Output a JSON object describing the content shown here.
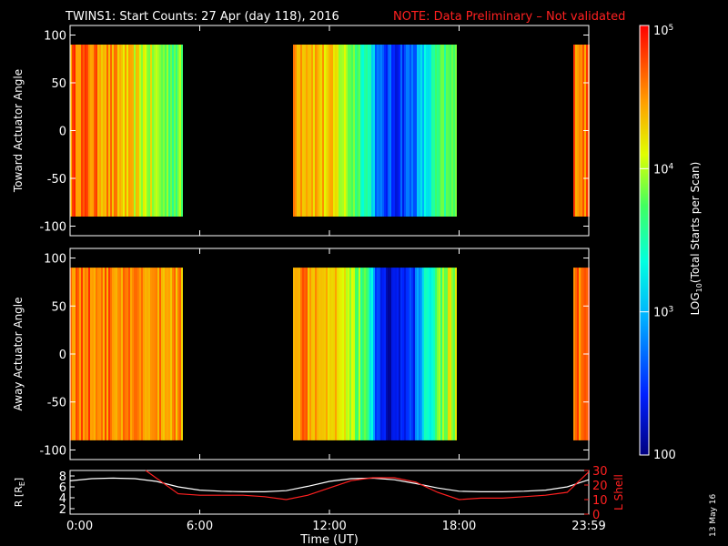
{
  "header": {
    "title": "TWINS1: Start Counts: 27 Apr (day 118), 2016",
    "note": "NOTE: Data Preliminary – Not validated"
  },
  "footer": {
    "date_stamp": "13 May 16"
  },
  "colors": {
    "background": "#000000",
    "axis": "#ffffff",
    "note": "#ff2020",
    "l_shell": "#ff2020",
    "radius": "#ffffff"
  },
  "colorbar": {
    "label": "LOG10(Total Starts per Scan)",
    "label_main": "LOG",
    "label_sub": "10",
    "label_rest": "(Total Starts per Scan)",
    "ticks": [
      {
        "value": 100,
        "text": "100"
      },
      {
        "value": 1000,
        "text": "10",
        "exp": "3"
      },
      {
        "value": 10000,
        "text": "10",
        "exp": "4"
      },
      {
        "value": 100000,
        "text": "10",
        "exp": "5"
      }
    ],
    "range": [
      100,
      100000
    ],
    "scale": "log",
    "colormap": "rainbow (blue→cyan→green→yellow→orange→red)"
  },
  "chart_data": [
    {
      "type": "heatmap",
      "panel": "toward",
      "ylabel": "Toward Actuator Angle",
      "ylim": [
        -110,
        110
      ],
      "y_ticks": [
        100,
        50,
        0,
        -50,
        -100
      ],
      "x_ticks": [
        "0:00",
        "6:00",
        "12:00",
        "18:00",
        "23:59"
      ],
      "xlim_hours": [
        0,
        24
      ],
      "angle_range": [
        -90,
        90
      ],
      "segments": [
        {
          "start_hours": 0.0,
          "end_hours": 5.2
        },
        {
          "start_hours": 10.3,
          "end_hours": 17.9
        },
        {
          "start_hours": 23.3,
          "end_hours": 24.0
        }
      ],
      "profile": [
        {
          "h": 0.0,
          "v": 40000
        },
        {
          "h": 0.3,
          "v": 50000
        },
        {
          "h": 1.0,
          "v": 38000
        },
        {
          "h": 1.8,
          "v": 30000
        },
        {
          "h": 2.6,
          "v": 18000
        },
        {
          "h": 3.5,
          "v": 11000
        },
        {
          "h": 4.3,
          "v": 7000
        },
        {
          "h": 5.2,
          "v": 6000
        },
        {
          "h": 10.3,
          "v": 35000
        },
        {
          "h": 11.0,
          "v": 30000
        },
        {
          "h": 12.0,
          "v": 17000
        },
        {
          "h": 13.2,
          "v": 6000
        },
        {
          "h": 13.9,
          "v": 2500
        },
        {
          "h": 14.2,
          "v": 400
        },
        {
          "h": 15.0,
          "v": 300
        },
        {
          "h": 15.8,
          "v": 500
        },
        {
          "h": 16.4,
          "v": 1500
        },
        {
          "h": 17.0,
          "v": 4000
        },
        {
          "h": 17.9,
          "v": 6000
        },
        {
          "h": 23.3,
          "v": 45000
        },
        {
          "h": 24.0,
          "v": 40000
        }
      ]
    },
    {
      "type": "heatmap",
      "panel": "away",
      "ylabel": "Away Actuator Angle",
      "ylim": [
        -110,
        110
      ],
      "y_ticks": [
        100,
        50,
        0,
        -50,
        -100
      ],
      "x_ticks": [
        "0:00",
        "6:00",
        "12:00",
        "18:00",
        "23:59"
      ],
      "xlim_hours": [
        0,
        24
      ],
      "angle_range": [
        -90,
        90
      ],
      "segments": [
        {
          "start_hours": 0.0,
          "end_hours": 5.2
        },
        {
          "start_hours": 10.3,
          "end_hours": 17.9
        },
        {
          "start_hours": 23.3,
          "end_hours": 24.0
        }
      ],
      "profile": [
        {
          "h": 0.0,
          "v": 45000
        },
        {
          "h": 1.0,
          "v": 40000
        },
        {
          "h": 2.0,
          "v": 35000
        },
        {
          "h": 3.0,
          "v": 30000
        },
        {
          "h": 4.0,
          "v": 28000
        },
        {
          "h": 5.2,
          "v": 30000
        },
        {
          "h": 10.3,
          "v": 40000
        },
        {
          "h": 11.5,
          "v": 32000
        },
        {
          "h": 12.5,
          "v": 20000
        },
        {
          "h": 13.3,
          "v": 7000
        },
        {
          "h": 13.9,
          "v": 2500
        },
        {
          "h": 14.2,
          "v": 250
        },
        {
          "h": 15.0,
          "v": 180
        },
        {
          "h": 15.8,
          "v": 300
        },
        {
          "h": 16.5,
          "v": 2500
        },
        {
          "h": 17.2,
          "v": 9000
        },
        {
          "h": 17.9,
          "v": 12000
        },
        {
          "h": 23.3,
          "v": 45000
        },
        {
          "h": 24.0,
          "v": 40000
        }
      ]
    },
    {
      "type": "line",
      "panel": "ephemeris",
      "xlabel": "Time (UT)",
      "x_ticks": [
        "0:00",
        "6:00",
        "12:00",
        "18:00",
        "23:59"
      ],
      "xlim_hours": [
        0,
        24
      ],
      "ylabel_left": "R [RE]",
      "ylabel_left_main": "R [R",
      "ylabel_left_sub": "E",
      "ylabel_left_close": "]",
      "ylim_left": [
        1,
        9
      ],
      "y_ticks_left": [
        8,
        6,
        4,
        2
      ],
      "ylabel_right": "L Shell",
      "ylim_right": [
        0,
        30
      ],
      "y_ticks_right": [
        30,
        20,
        10,
        0
      ],
      "series": [
        {
          "name": "R",
          "axis": "left",
          "x": [
            0,
            1,
            2,
            3,
            4,
            5,
            6,
            7,
            8,
            9,
            10,
            11,
            12,
            13,
            14,
            15,
            16,
            17,
            18,
            19,
            20,
            21,
            22,
            23,
            24
          ],
          "y": [
            7.1,
            7.5,
            7.6,
            7.5,
            7.0,
            6.0,
            5.4,
            5.2,
            5.1,
            5.1,
            5.3,
            6.1,
            7.0,
            7.5,
            7.6,
            7.3,
            6.6,
            5.8,
            5.2,
            5.1,
            5.1,
            5.2,
            5.4,
            6.0,
            7.3
          ]
        },
        {
          "name": "L Shell",
          "axis": "right",
          "x": [
            3.5,
            5.0,
            6.0,
            7.0,
            8.0,
            9.0,
            10.0,
            11.0,
            12.0,
            13.0,
            14.0,
            15.0,
            16.0,
            17.0,
            18.0,
            19.0,
            20.0,
            21.0,
            22.0,
            23.0,
            24.0
          ],
          "y": [
            30,
            14,
            13,
            13,
            13,
            12,
            10,
            13,
            18,
            23,
            25,
            25,
            22,
            15,
            10,
            11,
            11,
            12,
            13,
            15,
            29
          ]
        }
      ]
    }
  ]
}
